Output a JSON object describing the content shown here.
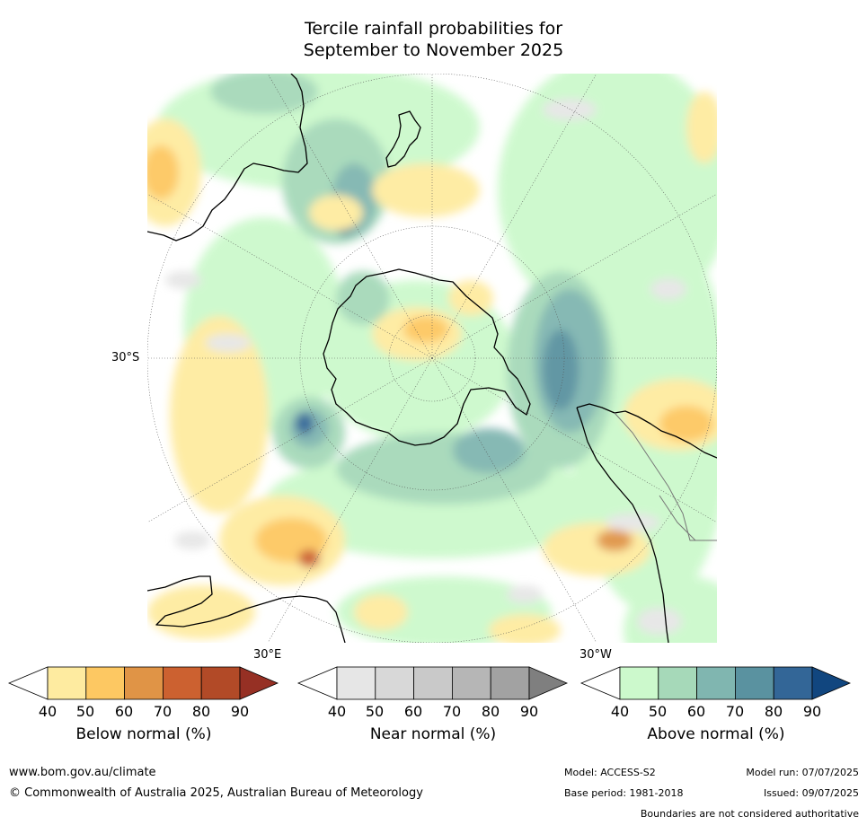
{
  "title_line1": "Tercile rainfall probabilities for",
  "title_line2": "September to November 2025",
  "map": {
    "projection": "south-polar-stereographic",
    "labels": {
      "lat": "30°S",
      "lon_east": "30°E",
      "lon_west": "30°W"
    }
  },
  "colorbars": [
    {
      "id": "below",
      "label": "Below normal (%)",
      "ticks": [
        "40",
        "50",
        "60",
        "70",
        "80",
        "90"
      ],
      "colors": [
        "#ffffff",
        "#feeba0",
        "#fdc862",
        "#e09446",
        "#cc6130",
        "#b24a27",
        "#963024"
      ]
    },
    {
      "id": "near",
      "label": "Near normal (%)",
      "ticks": [
        "40",
        "50",
        "60",
        "70",
        "80",
        "90"
      ],
      "colors": [
        "#ffffff",
        "#e6e6e6",
        "#d8d8d8",
        "#c9c9c9",
        "#b6b6b6",
        "#a2a2a2",
        "#7f7f7f"
      ]
    },
    {
      "id": "above",
      "label": "Above normal (%)",
      "ticks": [
        "40",
        "50",
        "60",
        "70",
        "80",
        "90"
      ],
      "colors": [
        "#ffffff",
        "#ccf9cc",
        "#a6d9b9",
        "#80b6b0",
        "#5a92a0",
        "#336697",
        "#11467f"
      ]
    }
  ],
  "footer": {
    "website": "www.bom.gov.au/climate",
    "copyright": "© Commonwealth of Australia 2025, Australian Bureau of Meteorology",
    "model": "Model: ACCESS-S2",
    "base_period": "Base period: 1981-2018",
    "model_run": "Model run: 07/07/2025",
    "issued": "Issued: 09/07/2025",
    "disclaimer": "Boundaries are not considered authoritative"
  }
}
